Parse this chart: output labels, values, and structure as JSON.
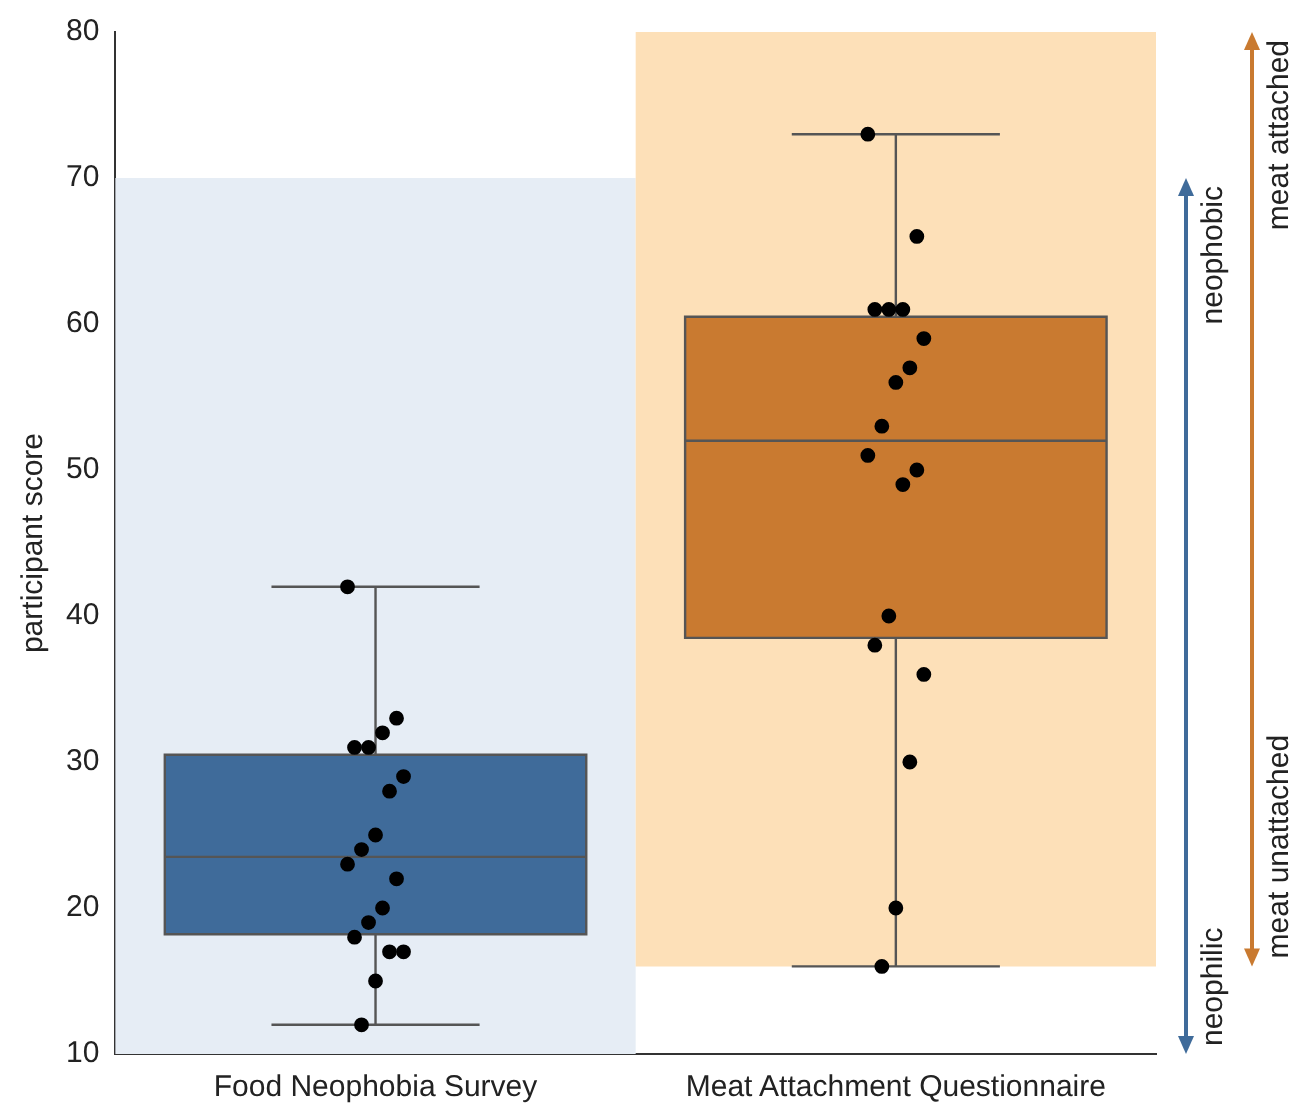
{
  "chart_data": {
    "type": "box",
    "ylabel": "participant score",
    "categories": [
      "Food Neophobia Survey",
      "Meat Attachment Questionnaire"
    ],
    "colors": [
      "#3f6b9a",
      "#c97a30"
    ],
    "boxes": [
      {
        "low": 12,
        "q1": 18.2,
        "median": 23.5,
        "q3": 30.5,
        "high": 42
      },
      {
        "low": 16,
        "q1": 38.5,
        "median": 52,
        "q3": 60.5,
        "high": 73
      }
    ],
    "series": [
      {
        "type": "scatter",
        "color": "#000000",
        "x": [
          "Food Neophobia Survey",
          "Food Neophobia Survey",
          "Food Neophobia Survey",
          "Food Neophobia Survey",
          "Food Neophobia Survey",
          "Food Neophobia Survey",
          "Food Neophobia Survey",
          "Food Neophobia Survey",
          "Food Neophobia Survey",
          "Food Neophobia Survey",
          "Food Neophobia Survey",
          "Food Neophobia Survey",
          "Food Neophobia Survey",
          "Food Neophobia Survey",
          "Food Neophobia Survey",
          "Food Neophobia Survey",
          "Food Neophobia Survey",
          "Food Neophobia Survey"
        ],
        "values": [
          42,
          33,
          32,
          31,
          31,
          29,
          28,
          25,
          24,
          23,
          22,
          20,
          19,
          18,
          17,
          17,
          15,
          12
        ]
      },
      {
        "type": "scatter",
        "color": "#000000",
        "x": [
          "Meat Attachment Questionnaire",
          "Meat Attachment Questionnaire",
          "Meat Attachment Questionnaire",
          "Meat Attachment Questionnaire",
          "Meat Attachment Questionnaire",
          "Meat Attachment Questionnaire",
          "Meat Attachment Questionnaire",
          "Meat Attachment Questionnaire",
          "Meat Attachment Questionnaire",
          "Meat Attachment Questionnaire",
          "Meat Attachment Questionnaire",
          "Meat Attachment Questionnaire",
          "Meat Attachment Questionnaire",
          "Meat Attachment Questionnaire",
          "Meat Attachment Questionnaire",
          "Meat Attachment Questionnaire",
          "Meat Attachment Questionnaire",
          "Meat Attachment Questionnaire"
        ],
        "values": [
          73,
          66,
          61,
          61,
          61,
          59,
          57,
          56,
          53,
          51,
          50,
          49,
          40,
          38,
          36,
          30,
          20,
          16
        ]
      }
    ],
    "bands": [
      {
        "axis": "y",
        "from": 10,
        "to": 70,
        "color": "#e6edf5"
      },
      {
        "axis": "y",
        "from": 16,
        "to": 80,
        "color": "#fde0b8"
      }
    ],
    "annotations": [
      "neophilic",
      "neophobic",
      "meat unattached",
      "meat attached"
    ],
    "ylim": [
      10,
      80
    ],
    "yticks": [
      10,
      20,
      30,
      40,
      50,
      60,
      70,
      80
    ],
    "grid": false,
    "legend": false,
    "marker": "circle"
  }
}
